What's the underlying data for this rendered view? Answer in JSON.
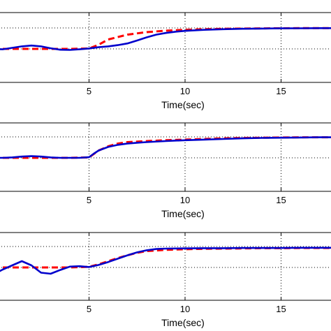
{
  "chart_data": [
    {
      "type": "line",
      "title": "",
      "xlabel": "Time(sec)",
      "ylabel": "",
      "xlim": [
        0.0,
        18.0
      ],
      "xticks": [
        5,
        10,
        15
      ],
      "grid": true,
      "colors": {
        "reference": "#ff0000",
        "response": "#0000cc"
      },
      "series": [
        {
          "style": "dashed",
          "color": "#ff0000",
          "x": [
            0.0,
            1.0,
            2.0,
            3.0,
            4.0,
            5.0,
            5.5,
            6.0,
            7.0,
            8.0,
            9.0,
            10.0,
            11.0,
            12.0,
            13.0,
            14.0,
            15.0,
            16.0,
            17.0,
            18.0
          ],
          "y": [
            0.0,
            0.0,
            0.0,
            0.0,
            0.0,
            0.02,
            0.2,
            0.45,
            0.68,
            0.8,
            0.87,
            0.91,
            0.94,
            0.96,
            0.97,
            0.98,
            0.985,
            0.99,
            0.99,
            0.99
          ]
        },
        {
          "style": "solid",
          "color": "#0000cc",
          "x": [
            0.0,
            0.5,
            1.0,
            1.5,
            2.0,
            2.5,
            3.0,
            3.5,
            4.0,
            4.5,
            5.0,
            5.5,
            6.0,
            6.5,
            7.0,
            7.5,
            8.0,
            8.5,
            9.0,
            9.5,
            10.0,
            11.0,
            12.0,
            13.0,
            14.0,
            15.0,
            16.0,
            17.0,
            18.0
          ],
          "y": [
            0.0,
            -0.02,
            0.05,
            0.12,
            0.16,
            0.12,
            0.03,
            -0.04,
            -0.05,
            -0.02,
            0.02,
            0.08,
            0.12,
            0.18,
            0.26,
            0.4,
            0.55,
            0.68,
            0.76,
            0.82,
            0.86,
            0.91,
            0.94,
            0.96,
            0.97,
            0.98,
            0.985,
            0.99,
            0.99
          ]
        }
      ]
    },
    {
      "type": "line",
      "title": "",
      "xlabel": "Time(sec)",
      "ylabel": "",
      "xlim": [
        0.0,
        18.0
      ],
      "xticks": [
        5,
        10,
        15
      ],
      "grid": true,
      "colors": {
        "reference": "#ff0000",
        "response": "#0000cc"
      },
      "series": [
        {
          "style": "dashed",
          "color": "#ff0000",
          "x": [
            0.0,
            1.0,
            2.0,
            3.0,
            4.0,
            5.0,
            5.5,
            6.0,
            6.5,
            7.0,
            8.0,
            9.0,
            10.0,
            11.0,
            12.0,
            13.0,
            14.0,
            15.0,
            16.0,
            17.0,
            18.0
          ],
          "y": [
            0.0,
            0.0,
            0.0,
            0.0,
            0.0,
            0.02,
            0.35,
            0.55,
            0.68,
            0.75,
            0.8,
            0.84,
            0.87,
            0.9,
            0.93,
            0.95,
            0.96,
            0.97,
            0.98,
            0.98,
            0.98
          ]
        },
        {
          "style": "solid",
          "color": "#0000cc",
          "x": [
            0.0,
            0.5,
            1.0,
            1.5,
            2.0,
            2.5,
            3.0,
            3.5,
            4.0,
            4.5,
            5.0,
            5.25,
            5.5,
            6.0,
            6.5,
            7.0,
            7.5,
            8.0,
            9.0,
            10.0,
            11.0,
            12.0,
            13.0,
            14.0,
            15.0,
            16.0,
            17.0,
            18.0
          ],
          "y": [
            0.0,
            0.0,
            0.02,
            0.06,
            0.08,
            0.06,
            0.02,
            0.0,
            0.0,
            0.0,
            0.03,
            0.2,
            0.35,
            0.52,
            0.62,
            0.68,
            0.72,
            0.75,
            0.8,
            0.84,
            0.87,
            0.9,
            0.93,
            0.95,
            0.96,
            0.97,
            0.98,
            0.98
          ]
        }
      ]
    },
    {
      "type": "line",
      "title": "",
      "xlabel": "Time(sec)",
      "ylabel": "",
      "xlim": [
        0.0,
        18.0
      ],
      "xticks": [
        5,
        10,
        15
      ],
      "grid": true,
      "colors": {
        "reference": "#ff0000",
        "response": "#0000cc"
      },
      "series": [
        {
          "style": "dashed",
          "color": "#ff0000",
          "x": [
            0.0,
            1.0,
            2.0,
            3.0,
            4.0,
            5.0,
            5.5,
            6.0,
            6.5,
            7.0,
            7.5,
            8.0,
            9.0,
            10.0,
            11.0,
            12.0,
            13.0,
            14.0,
            15.0,
            16.0,
            17.0,
            18.0
          ],
          "y": [
            0.0,
            0.0,
            0.0,
            0.0,
            0.0,
            0.03,
            0.15,
            0.3,
            0.45,
            0.58,
            0.7,
            0.78,
            0.84,
            0.87,
            0.89,
            0.9,
            0.91,
            0.92,
            0.92,
            0.93,
            0.93,
            0.93
          ]
        },
        {
          "style": "solid",
          "color": "#0000cc",
          "x": [
            0.0,
            0.5,
            1.0,
            1.5,
            2.0,
            2.5,
            3.0,
            3.5,
            4.0,
            4.5,
            5.0,
            5.5,
            6.0,
            6.5,
            7.0,
            7.5,
            8.0,
            8.5,
            9.0,
            10.0,
            11.0,
            12.0,
            13.0,
            14.0,
            15.0,
            16.0,
            17.0,
            18.0
          ],
          "y": [
            -0.35,
            -0.1,
            0.1,
            0.3,
            0.1,
            -0.25,
            -0.3,
            -0.12,
            0.04,
            0.06,
            0.02,
            0.12,
            0.26,
            0.42,
            0.58,
            0.72,
            0.82,
            0.88,
            0.9,
            0.91,
            0.92,
            0.92,
            0.93,
            0.93,
            0.93,
            0.94,
            0.94,
            0.94
          ]
        }
      ]
    }
  ]
}
